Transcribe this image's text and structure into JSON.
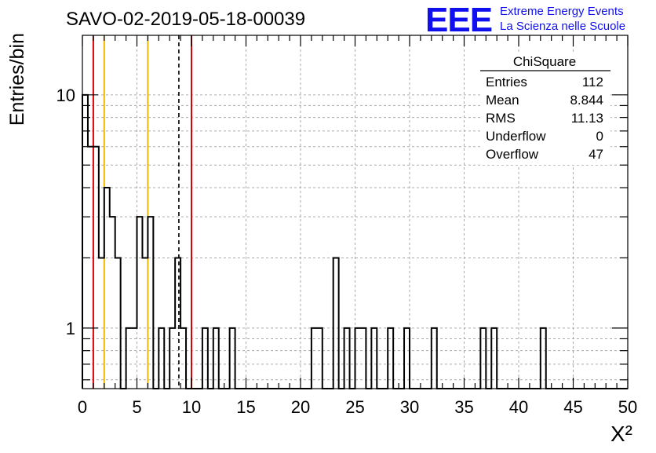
{
  "chart_data": {
    "type": "bar",
    "title": "SAVO-02-2019-05-18-00039",
    "xlabel": "X²",
    "ylabel": "Entries/bin",
    "xlim": [
      0,
      50
    ],
    "ylim": [
      0.55,
      18
    ],
    "y_scale": "log",
    "grid": true,
    "x_ticks": [
      "0",
      "5",
      "10",
      "15",
      "20",
      "25",
      "30",
      "35",
      "40",
      "45",
      "50"
    ],
    "y_ticks": [
      "1",
      "10"
    ],
    "bin_width": 0.5,
    "bins": [
      {
        "x": 0.25,
        "y": 10
      },
      {
        "x": 0.75,
        "y": 6
      },
      {
        "x": 1.25,
        "y": 6
      },
      {
        "x": 1.75,
        "y": 2
      },
      {
        "x": 2.25,
        "y": 4
      },
      {
        "x": 2.75,
        "y": 3
      },
      {
        "x": 3.25,
        "y": 2
      },
      {
        "x": 4.25,
        "y": 1
      },
      {
        "x": 4.75,
        "y": 1
      },
      {
        "x": 5.25,
        "y": 3
      },
      {
        "x": 5.75,
        "y": 2
      },
      {
        "x": 6.25,
        "y": 3
      },
      {
        "x": 7.25,
        "y": 1
      },
      {
        "x": 8.25,
        "y": 1
      },
      {
        "x": 8.75,
        "y": 2
      },
      {
        "x": 9.25,
        "y": 1
      },
      {
        "x": 11.25,
        "y": 1
      },
      {
        "x": 12.25,
        "y": 1
      },
      {
        "x": 13.75,
        "y": 1
      },
      {
        "x": 21.25,
        "y": 1
      },
      {
        "x": 21.75,
        "y": 1
      },
      {
        "x": 23.25,
        "y": 2
      },
      {
        "x": 24.25,
        "y": 1
      },
      {
        "x": 25.25,
        "y": 1
      },
      {
        "x": 25.75,
        "y": 1
      },
      {
        "x": 26.75,
        "y": 1
      },
      {
        "x": 28.25,
        "y": 1
      },
      {
        "x": 29.75,
        "y": 1
      },
      {
        "x": 32.25,
        "y": 1
      },
      {
        "x": 36.75,
        "y": 1
      },
      {
        "x": 37.75,
        "y": 1
      },
      {
        "x": 42.25,
        "y": 1
      }
    ],
    "vertical_lines": [
      {
        "x": 1,
        "color": "#dd0000",
        "style": "solid"
      },
      {
        "x": 2,
        "color": "#f0b800",
        "style": "solid"
      },
      {
        "x": 6,
        "color": "#f0b800",
        "style": "solid"
      },
      {
        "x": 8.844,
        "color": "#000000",
        "style": "dashed"
      },
      {
        "x": 10,
        "color": "#dd0000",
        "style": "solid"
      }
    ]
  },
  "stats": {
    "title": "ChiSquare",
    "rows": [
      {
        "label": "Entries",
        "value": "112"
      },
      {
        "label": "Mean",
        "value": "8.844"
      },
      {
        "label": "RMS",
        "value": "11.13"
      },
      {
        "label": "Underflow",
        "value": "0"
      },
      {
        "label": "Overflow",
        "value": "47"
      }
    ]
  },
  "logo": {
    "mark": "EEE",
    "line1": "Extreme Energy Events",
    "line2": "La Scienza nelle Scuole",
    "color": "#1010ee"
  }
}
